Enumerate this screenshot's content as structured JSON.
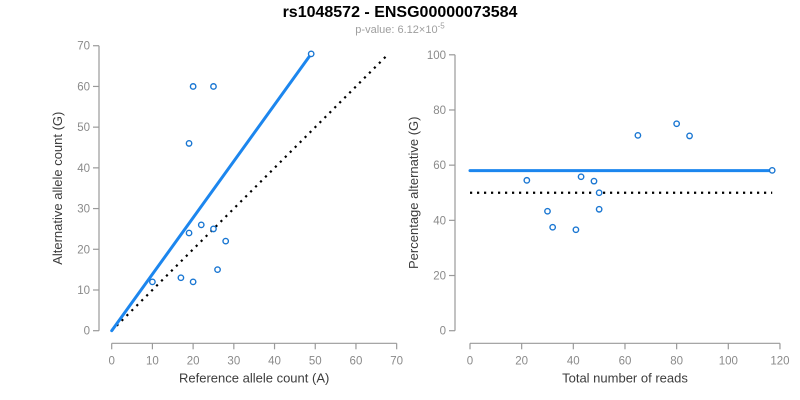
{
  "header": {
    "title": "rs1048572 - ENSG00000073584",
    "p_value_text": "p-value: 6.12×10",
    "p_value_exponent": "-5"
  },
  "colors": {
    "fit_line_blue": "#1C86EE",
    "point_blue": "#1976D2",
    "reference_line_black": "#000000",
    "axis_line_gray": "#9A9A9A",
    "tick_text_gray": "#8A8A8A",
    "axis_title_gray": "#3C3C3C",
    "subtitle_gray": "#9E9E9E",
    "point_fill": "#FFFFFF"
  },
  "chart_data": [
    {
      "type": "scatter",
      "figure_title": "rs1048572 - ENSG00000073584",
      "figure_subtitle": "p-value: 6.12×10⁻⁵",
      "xlabel": "Reference allele count (A)",
      "ylabel": "Alternative allele count (G)",
      "xlim": [
        0,
        70
      ],
      "ylim": [
        0,
        70
      ],
      "xticks": [
        0,
        10,
        20,
        30,
        40,
        50,
        60,
        70
      ],
      "yticks": [
        0,
        10,
        20,
        30,
        40,
        50,
        60,
        70
      ],
      "grid": false,
      "legend": false,
      "points": [
        [
          49,
          68
        ],
        [
          20,
          60
        ],
        [
          25,
          60
        ],
        [
          19,
          46
        ],
        [
          22,
          26
        ],
        [
          19,
          24
        ],
        [
          25,
          25
        ],
        [
          28,
          22
        ],
        [
          26,
          15
        ],
        [
          17,
          13
        ],
        [
          20,
          12
        ],
        [
          10,
          12
        ]
      ],
      "fit_line": {
        "style": "solid",
        "x1": 0,
        "y1": 0,
        "x2": 49,
        "y2": 68
      },
      "reference_line": {
        "style": "dotted",
        "x1": 0,
        "y1": 0,
        "x2": 68,
        "y2": 68
      }
    },
    {
      "type": "scatter",
      "figure_title": "rs1048572 - ENSG00000073584",
      "figure_subtitle": "p-value: 6.12×10⁻⁵",
      "xlabel": "Total number of reads",
      "ylabel": "Percentage alternative (G)",
      "xlim": [
        0,
        120
      ],
      "ylim": [
        0,
        100
      ],
      "xticks": [
        0,
        20,
        40,
        60,
        80,
        100,
        120
      ],
      "yticks": [
        0,
        20,
        40,
        60,
        80,
        100
      ],
      "grid": false,
      "legend": false,
      "points": [
        [
          22,
          54.5
        ],
        [
          30,
          43.3
        ],
        [
          32,
          37.5
        ],
        [
          41,
          36.6
        ],
        [
          43,
          55.8
        ],
        [
          48,
          54.2
        ],
        [
          50,
          50.0
        ],
        [
          50,
          44.0
        ],
        [
          65,
          70.8
        ],
        [
          80,
          75.0
        ],
        [
          85,
          70.6
        ],
        [
          117,
          58.1
        ]
      ],
      "fit_line": {
        "style": "solid",
        "x1": 0,
        "y1": 58,
        "x2": 117,
        "y2": 58
      },
      "reference_line": {
        "style": "dotted",
        "x1": 0,
        "y1": 50,
        "x2": 117,
        "y2": 50
      }
    }
  ]
}
